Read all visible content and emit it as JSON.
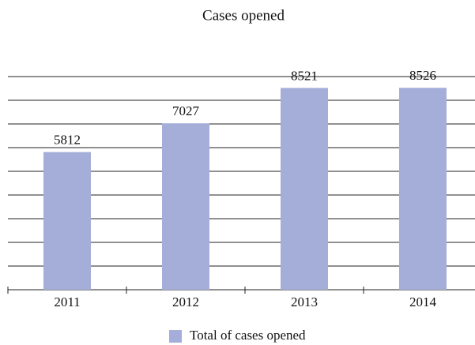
{
  "chart_data": {
    "type": "bar",
    "title": "Cases opened",
    "categories": [
      "2011",
      "2012",
      "2013",
      "2014"
    ],
    "values": [
      5812,
      7027,
      8521,
      8526
    ],
    "series_name": "Total of cases opened",
    "color": "#a4aed9",
    "ylim": [
      0,
      9000
    ],
    "yticks": [
      0,
      1000,
      2000,
      3000,
      4000,
      5000,
      6000,
      7000,
      8000,
      9000
    ],
    "grid": true
  }
}
